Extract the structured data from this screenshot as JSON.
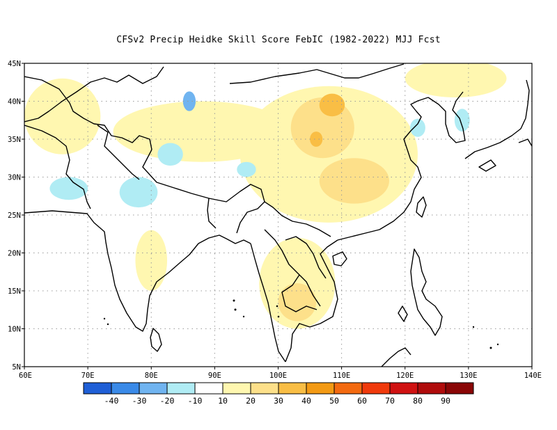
{
  "title": "CFSv2 Precip Heidke Skill Score FebIC (1982-2022) MJJ Fcst",
  "map": {
    "lon_range": [
      60,
      140
    ],
    "lat_range": [
      5,
      45
    ],
    "lon_ticks": [
      {
        "value": 60,
        "label": "60E"
      },
      {
        "value": 70,
        "label": "70E"
      },
      {
        "value": 80,
        "label": "80E"
      },
      {
        "value": 90,
        "label": "90E"
      },
      {
        "value": 100,
        "label": "100E"
      },
      {
        "value": 110,
        "label": "110E"
      },
      {
        "value": 120,
        "label": "120E"
      },
      {
        "value": 130,
        "label": "130E"
      },
      {
        "value": 140,
        "label": "140E"
      }
    ],
    "lat_ticks": [
      {
        "value": 5,
        "label": "5N"
      },
      {
        "value": 10,
        "label": "10N"
      },
      {
        "value": 15,
        "label": "15N"
      },
      {
        "value": 20,
        "label": "20N"
      },
      {
        "value": 25,
        "label": "25N"
      },
      {
        "value": 30,
        "label": "30N"
      },
      {
        "value": 35,
        "label": "35N"
      },
      {
        "value": 40,
        "label": "40N"
      },
      {
        "value": 45,
        "label": "45N"
      }
    ],
    "grid": "dotted"
  },
  "colorbar": {
    "colors": [
      "#1f5fd6",
      "#3a8ae8",
      "#70b4f0",
      "#b0ecf4",
      "#ffffff",
      "#fff7b0",
      "#fde08a",
      "#f9be45",
      "#f39a14",
      "#f36a10",
      "#f03a0c",
      "#d01212",
      "#b00c0c",
      "#8a0606"
    ],
    "labels": [
      "-40",
      "-30",
      "-20",
      "-10",
      "10",
      "20",
      "30",
      "40",
      "50",
      "60",
      "70",
      "80",
      "90"
    ]
  },
  "anomaly_regions": [
    {
      "level": 20,
      "color": "#fff7b0",
      "lon": 108,
      "lat": 33,
      "rx": 14,
      "ry": 9
    },
    {
      "level": 20,
      "color": "#fff7b0",
      "lon": 103,
      "lat": 16,
      "rx": 6,
      "ry": 6
    },
    {
      "level": 20,
      "color": "#fff7b0",
      "lon": 88,
      "lat": 36,
      "rx": 14,
      "ry": 4
    },
    {
      "level": 20,
      "color": "#fff7b0",
      "lon": 66,
      "lat": 38,
      "rx": 6,
      "ry": 5
    },
    {
      "level": 20,
      "color": "#fff7b0",
      "lon": 80,
      "lat": 19,
      "rx": 2.5,
      "ry": 4
    },
    {
      "level": 20,
      "color": "#fff7b0",
      "lon": 128,
      "lat": 43,
      "rx": 8,
      "ry": 2.5
    },
    {
      "level": 30,
      "color": "#fde08a",
      "lon": 107,
      "lat": 36.5,
      "rx": 5,
      "ry": 4
    },
    {
      "level": 30,
      "color": "#fde08a",
      "lon": 112,
      "lat": 29.5,
      "rx": 5.5,
      "ry": 3
    },
    {
      "level": 30,
      "color": "#fde08a",
      "lon": 103,
      "lat": 13.5,
      "rx": 3,
      "ry": 2.5
    },
    {
      "level": 40,
      "color": "#f9be45",
      "lon": 108.5,
      "lat": 39.5,
      "rx": 2,
      "ry": 1.5
    },
    {
      "level": 40,
      "color": "#f9be45",
      "lon": 106,
      "lat": 35,
      "rx": 1,
      "ry": 1
    },
    {
      "level": -10,
      "color": "#b0ecf4",
      "lon": 67,
      "lat": 28.5,
      "rx": 3,
      "ry": 1.5
    },
    {
      "level": -10,
      "color": "#b0ecf4",
      "lon": 78,
      "lat": 28,
      "rx": 3,
      "ry": 2
    },
    {
      "level": -10,
      "color": "#b0ecf4",
      "lon": 83,
      "lat": 33,
      "rx": 2,
      "ry": 1.5
    },
    {
      "level": -10,
      "color": "#b0ecf4",
      "lon": 95,
      "lat": 31,
      "rx": 1.5,
      "ry": 1
    },
    {
      "level": -10,
      "color": "#b0ecf4",
      "lon": 122,
      "lat": 36.5,
      "rx": 1.2,
      "ry": 1.2
    },
    {
      "level": -10,
      "color": "#b0ecf4",
      "lon": 129,
      "lat": 37.5,
      "rx": 1.2,
      "ry": 1.5
    },
    {
      "level": -20,
      "color": "#70b4f0",
      "lon": 86,
      "lat": 40,
      "rx": 1,
      "ry": 1.3
    }
  ]
}
